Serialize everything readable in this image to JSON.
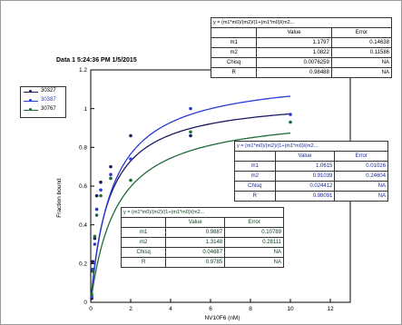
{
  "chart_data": {
    "type": "scatter",
    "title": "Data 1 5:24:36 PM 1/5/2015",
    "xlabel": "NV10F6 (nM)",
    "ylabel": "Fraction bound",
    "xlim": [
      0,
      13
    ],
    "ylim": [
      0,
      1.2
    ],
    "x_ticks": [
      "0",
      "2",
      "4",
      "6",
      "8",
      "10",
      "12"
    ],
    "y_ticks": [
      "0",
      "0.2",
      "0.4",
      "0.6",
      "0.8",
      "1",
      "1.2"
    ],
    "grid": false,
    "legend_position": "top-left",
    "series": [
      {
        "name": "30327",
        "color": "#1a1a60",
        "points": [
          [
            0.05,
            0.02
          ],
          [
            0.1,
            0.21
          ],
          [
            0.2,
            0.33
          ],
          [
            0.3,
            0.55
          ],
          [
            0.5,
            0.62
          ],
          [
            1,
            0.7
          ],
          [
            2,
            0.86
          ],
          [
            5,
            0.86
          ],
          [
            10,
            0.82
          ]
        ]
      },
      {
        "name": "30387",
        "color": "#2b3bd4",
        "points": [
          [
            0.05,
            0.03
          ],
          [
            0.1,
            0.17
          ],
          [
            0.2,
            0.3
          ],
          [
            0.3,
            0.48
          ],
          [
            0.5,
            0.58
          ],
          [
            1,
            0.66
          ],
          [
            2,
            0.74
          ],
          [
            5,
            1.0
          ],
          [
            10,
            0.97
          ]
        ]
      },
      {
        "name": "30767",
        "color": "#1d6b3a",
        "points": [
          [
            0.05,
            0.04
          ],
          [
            0.1,
            0.16
          ],
          [
            0.2,
            0.34
          ],
          [
            0.3,
            0.45
          ],
          [
            0.5,
            0.55
          ],
          [
            1,
            0.64
          ],
          [
            2,
            0.63
          ],
          [
            5,
            0.88
          ],
          [
            10,
            0.93
          ]
        ]
      }
    ],
    "fits": [
      {
        "series": "30327",
        "m1": 1.0615,
        "m2": 0.91039
      },
      {
        "series": "30387",
        "m1": 1.1797,
        "m2": 1.0822
      },
      {
        "series": "30767",
        "m1": 0.9887,
        "m2": 1.3148
      }
    ]
  },
  "tables": [
    {
      "equation": "y = (m1*m0)/(m2)/(1+(m1*m0)/(m2...",
      "header": [
        "",
        "Value",
        "Error"
      ],
      "rows": [
        [
          "m1",
          "1.1797",
          "0.14638"
        ],
        [
          "m2",
          "1.0822",
          "0.11586"
        ],
        [
          "Chisq",
          "0.0076259",
          "NA"
        ],
        [
          "R",
          "0.98488",
          "NA"
        ]
      ]
    },
    {
      "equation": "y = (m1*m0)/(m2)/(1+(m1*m0)/(m2...",
      "header": [
        "",
        "Value",
        "Error"
      ],
      "rows": [
        [
          "m1",
          "1.0615",
          "0.01026"
        ],
        [
          "m2",
          "0.91039",
          "0.24604"
        ],
        [
          "Chisq",
          "0.024412",
          "NA"
        ],
        [
          "R",
          "0.98091",
          "NA"
        ]
      ]
    },
    {
      "equation": "y = (m1*m0)/(m2)/(1+(m1*m0)/(m2...",
      "header": [
        "",
        "Value",
        "Error"
      ],
      "rows": [
        [
          "m1",
          "0.9887",
          "0.10789"
        ],
        [
          "m2",
          "1.3148",
          "0.28111"
        ],
        [
          "Chisq",
          "0.04687",
          "NA"
        ],
        [
          "R",
          "0.9785",
          "NA"
        ]
      ]
    }
  ]
}
